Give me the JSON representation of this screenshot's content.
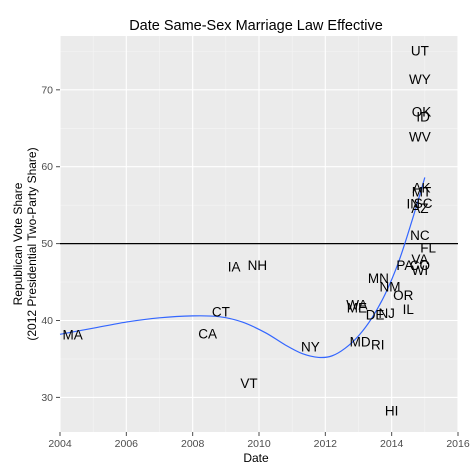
{
  "chart_data": {
    "type": "scatter",
    "title": "Date Same-Sex Marriage Law Effective",
    "xlabel": "Date",
    "ylabel_lines": [
      "Republican Vote Share",
      "(2012 Presidential Two-Party Share)"
    ],
    "xlim": [
      2004,
      2016
    ],
    "ylim": [
      25.5,
      77
    ],
    "x_ticks": [
      2004,
      2006,
      2008,
      2010,
      2012,
      2014,
      2016
    ],
    "y_ticks": [
      30,
      40,
      50,
      60,
      70
    ],
    "grid": true,
    "reference_line_y": 50,
    "colors": {
      "panel": "#ebebeb",
      "grid": "#ffffff",
      "smooth": "#3366ff",
      "text": "#000000"
    },
    "points": [
      {
        "label": "MA",
        "x": 2004.38,
        "y": 38.2
      },
      {
        "label": "CT",
        "x": 2008.85,
        "y": 41.2
      },
      {
        "label": "CA",
        "x": 2008.45,
        "y": 38.3
      },
      {
        "label": "IA",
        "x": 2009.25,
        "y": 47.0
      },
      {
        "label": "NH",
        "x": 2009.95,
        "y": 47.2
      },
      {
        "label": "VT",
        "x": 2009.7,
        "y": 31.9
      },
      {
        "label": "NY",
        "x": 2011.55,
        "y": 36.6
      },
      {
        "label": "MD",
        "x": 2013.05,
        "y": 37.3
      },
      {
        "label": "RI",
        "x": 2013.58,
        "y": 36.9
      },
      {
        "label": "WA",
        "x": 2012.95,
        "y": 42.1
      },
      {
        "label": "ME",
        "x": 2012.95,
        "y": 41.7
      },
      {
        "label": "DE",
        "x": 2013.5,
        "y": 40.8
      },
      {
        "label": "NJ",
        "x": 2013.85,
        "y": 41.0
      },
      {
        "label": "MN",
        "x": 2013.6,
        "y": 45.5
      },
      {
        "label": "NM",
        "x": 2013.95,
        "y": 44.4
      },
      {
        "label": "IL",
        "x": 2014.5,
        "y": 41.5
      },
      {
        "label": "OR",
        "x": 2014.35,
        "y": 43.3
      },
      {
        "label": "PA",
        "x": 2014.4,
        "y": 47.2
      },
      {
        "label": "CO",
        "x": 2014.85,
        "y": 47.2
      },
      {
        "label": "WI",
        "x": 2014.85,
        "y": 46.6
      },
      {
        "label": "VA",
        "x": 2014.85,
        "y": 48.0
      },
      {
        "label": "FL",
        "x": 2015.1,
        "y": 49.5
      },
      {
        "label": "NC",
        "x": 2014.85,
        "y": 51.1
      },
      {
        "label": "IN",
        "x": 2014.65,
        "y": 55.2
      },
      {
        "label": "SC",
        "x": 2014.95,
        "y": 55.3
      },
      {
        "label": "AZ",
        "x": 2014.85,
        "y": 54.6
      },
      {
        "label": "AK",
        "x": 2014.9,
        "y": 57.3
      },
      {
        "label": "MT",
        "x": 2014.9,
        "y": 56.8
      },
      {
        "label": "WV",
        "x": 2014.85,
        "y": 63.9
      },
      {
        "label": "ID",
        "x": 2014.95,
        "y": 66.5
      },
      {
        "label": "OK",
        "x": 2014.9,
        "y": 67.2
      },
      {
        "label": "WY",
        "x": 2014.85,
        "y": 71.4
      },
      {
        "label": "UT",
        "x": 2014.85,
        "y": 75.1
      },
      {
        "label": "HI",
        "x": 2014.0,
        "y": 28.3
      }
    ],
    "smooth_curve": [
      {
        "x": 2004.0,
        "y": 38.2
      },
      {
        "x": 2005.0,
        "y": 39.0
      },
      {
        "x": 2006.0,
        "y": 39.8
      },
      {
        "x": 2007.0,
        "y": 40.35
      },
      {
        "x": 2008.0,
        "y": 40.6
      },
      {
        "x": 2008.8,
        "y": 40.5
      },
      {
        "x": 2009.5,
        "y": 39.8
      },
      {
        "x": 2010.2,
        "y": 38.4
      },
      {
        "x": 2010.8,
        "y": 36.8
      },
      {
        "x": 2011.3,
        "y": 35.7
      },
      {
        "x": 2011.8,
        "y": 35.2
      },
      {
        "x": 2012.2,
        "y": 35.4
      },
      {
        "x": 2012.6,
        "y": 36.4
      },
      {
        "x": 2013.0,
        "y": 38.0
      },
      {
        "x": 2013.4,
        "y": 40.3
      },
      {
        "x": 2013.8,
        "y": 43.4
      },
      {
        "x": 2014.2,
        "y": 47.5
      },
      {
        "x": 2014.6,
        "y": 52.8
      },
      {
        "x": 2015.0,
        "y": 58.6
      }
    ]
  }
}
